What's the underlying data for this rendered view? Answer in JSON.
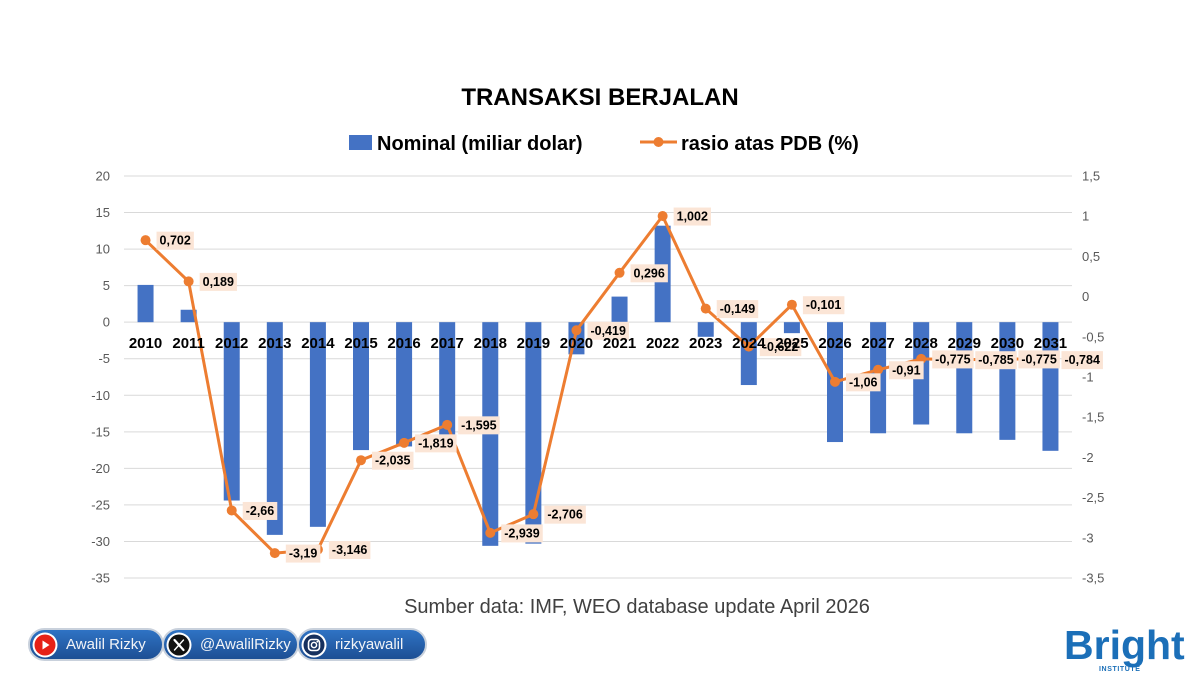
{
  "chart_data": {
    "type": "bar",
    "title": "TRANSAKSI BERJALAN",
    "categories": [
      "2010",
      "2011",
      "2012",
      "2013",
      "2014",
      "2015",
      "2016",
      "2017",
      "2018",
      "2019",
      "2020",
      "2021",
      "2022",
      "2023",
      "2024",
      "2025",
      "2026",
      "2027",
      "2028",
      "2029",
      "2030",
      "2031"
    ],
    "series": [
      {
        "name": "Nominal (miliar dolar)",
        "type": "bar",
        "axis": "left",
        "color": "#4472C4",
        "values": [
          5.1,
          1.7,
          -24.4,
          -29.1,
          -28.0,
          -17.5,
          -17.0,
          -16.2,
          -30.6,
          -30.3,
          -4.4,
          3.5,
          13.2,
          -2.0,
          -8.6,
          -1.5,
          -16.4,
          -15.2,
          -14.0,
          -15.2,
          -16.1,
          -17.6
        ]
      },
      {
        "name": "rasio atas PDB (%)",
        "type": "line",
        "axis": "right",
        "color": "#ED7D31",
        "values": [
          0.702,
          0.189,
          -2.66,
          -3.19,
          -3.146,
          -2.035,
          -1.819,
          -1.595,
          -2.939,
          -2.706,
          -0.419,
          0.296,
          1.002,
          -0.149,
          -0.622,
          -0.101,
          -1.06,
          -0.91,
          -0.775,
          -0.785,
          -0.775,
          -0.784
        ],
        "data_labels": [
          "0,702",
          "0,189",
          "-2,66",
          "-3,19",
          "-3,146",
          "-2,035",
          "-1,819",
          "-1,595",
          "-2,939",
          "-2,706",
          "-0,419",
          "0,296",
          "1,002",
          "-0,149",
          "-0,622",
          "-0,101",
          "-1,06",
          "-0,91",
          "-0,775",
          "-0,785",
          "-0,775",
          "-0,784"
        ]
      }
    ],
    "y_left": {
      "range": [
        -35,
        20
      ],
      "step": 5,
      "tick_labels": [
        "20",
        "15",
        "10",
        "5",
        "0",
        "-5",
        "-10",
        "-15",
        "-20",
        "-25",
        "-30",
        "-35"
      ]
    },
    "y_right": {
      "range": [
        -3.5,
        1.5
      ],
      "step": 0.5,
      "tick_labels": [
        "1,5",
        "1",
        "0,5",
        "0",
        "-0,5",
        "-1",
        "-1,5",
        "-2",
        "-2,5",
        "-3",
        "-3,5"
      ]
    },
    "grid": true,
    "legend_position": "top",
    "data_label_background": "#FBE5D6",
    "gridline_color": "#D9D9D9"
  },
  "source_note": "Sumber data: IMF, WEO database update April 2026",
  "socials": [
    {
      "icon": "youtube-icon",
      "label": "Awalil Rizky"
    },
    {
      "icon": "x-icon",
      "label": "@AwalilRizky"
    },
    {
      "icon": "instagram-icon",
      "label": "rizkyawalil"
    }
  ],
  "logo": {
    "wordmark": "Bright",
    "tagline": "INSTITUTE",
    "color": "#1B6FB8"
  }
}
